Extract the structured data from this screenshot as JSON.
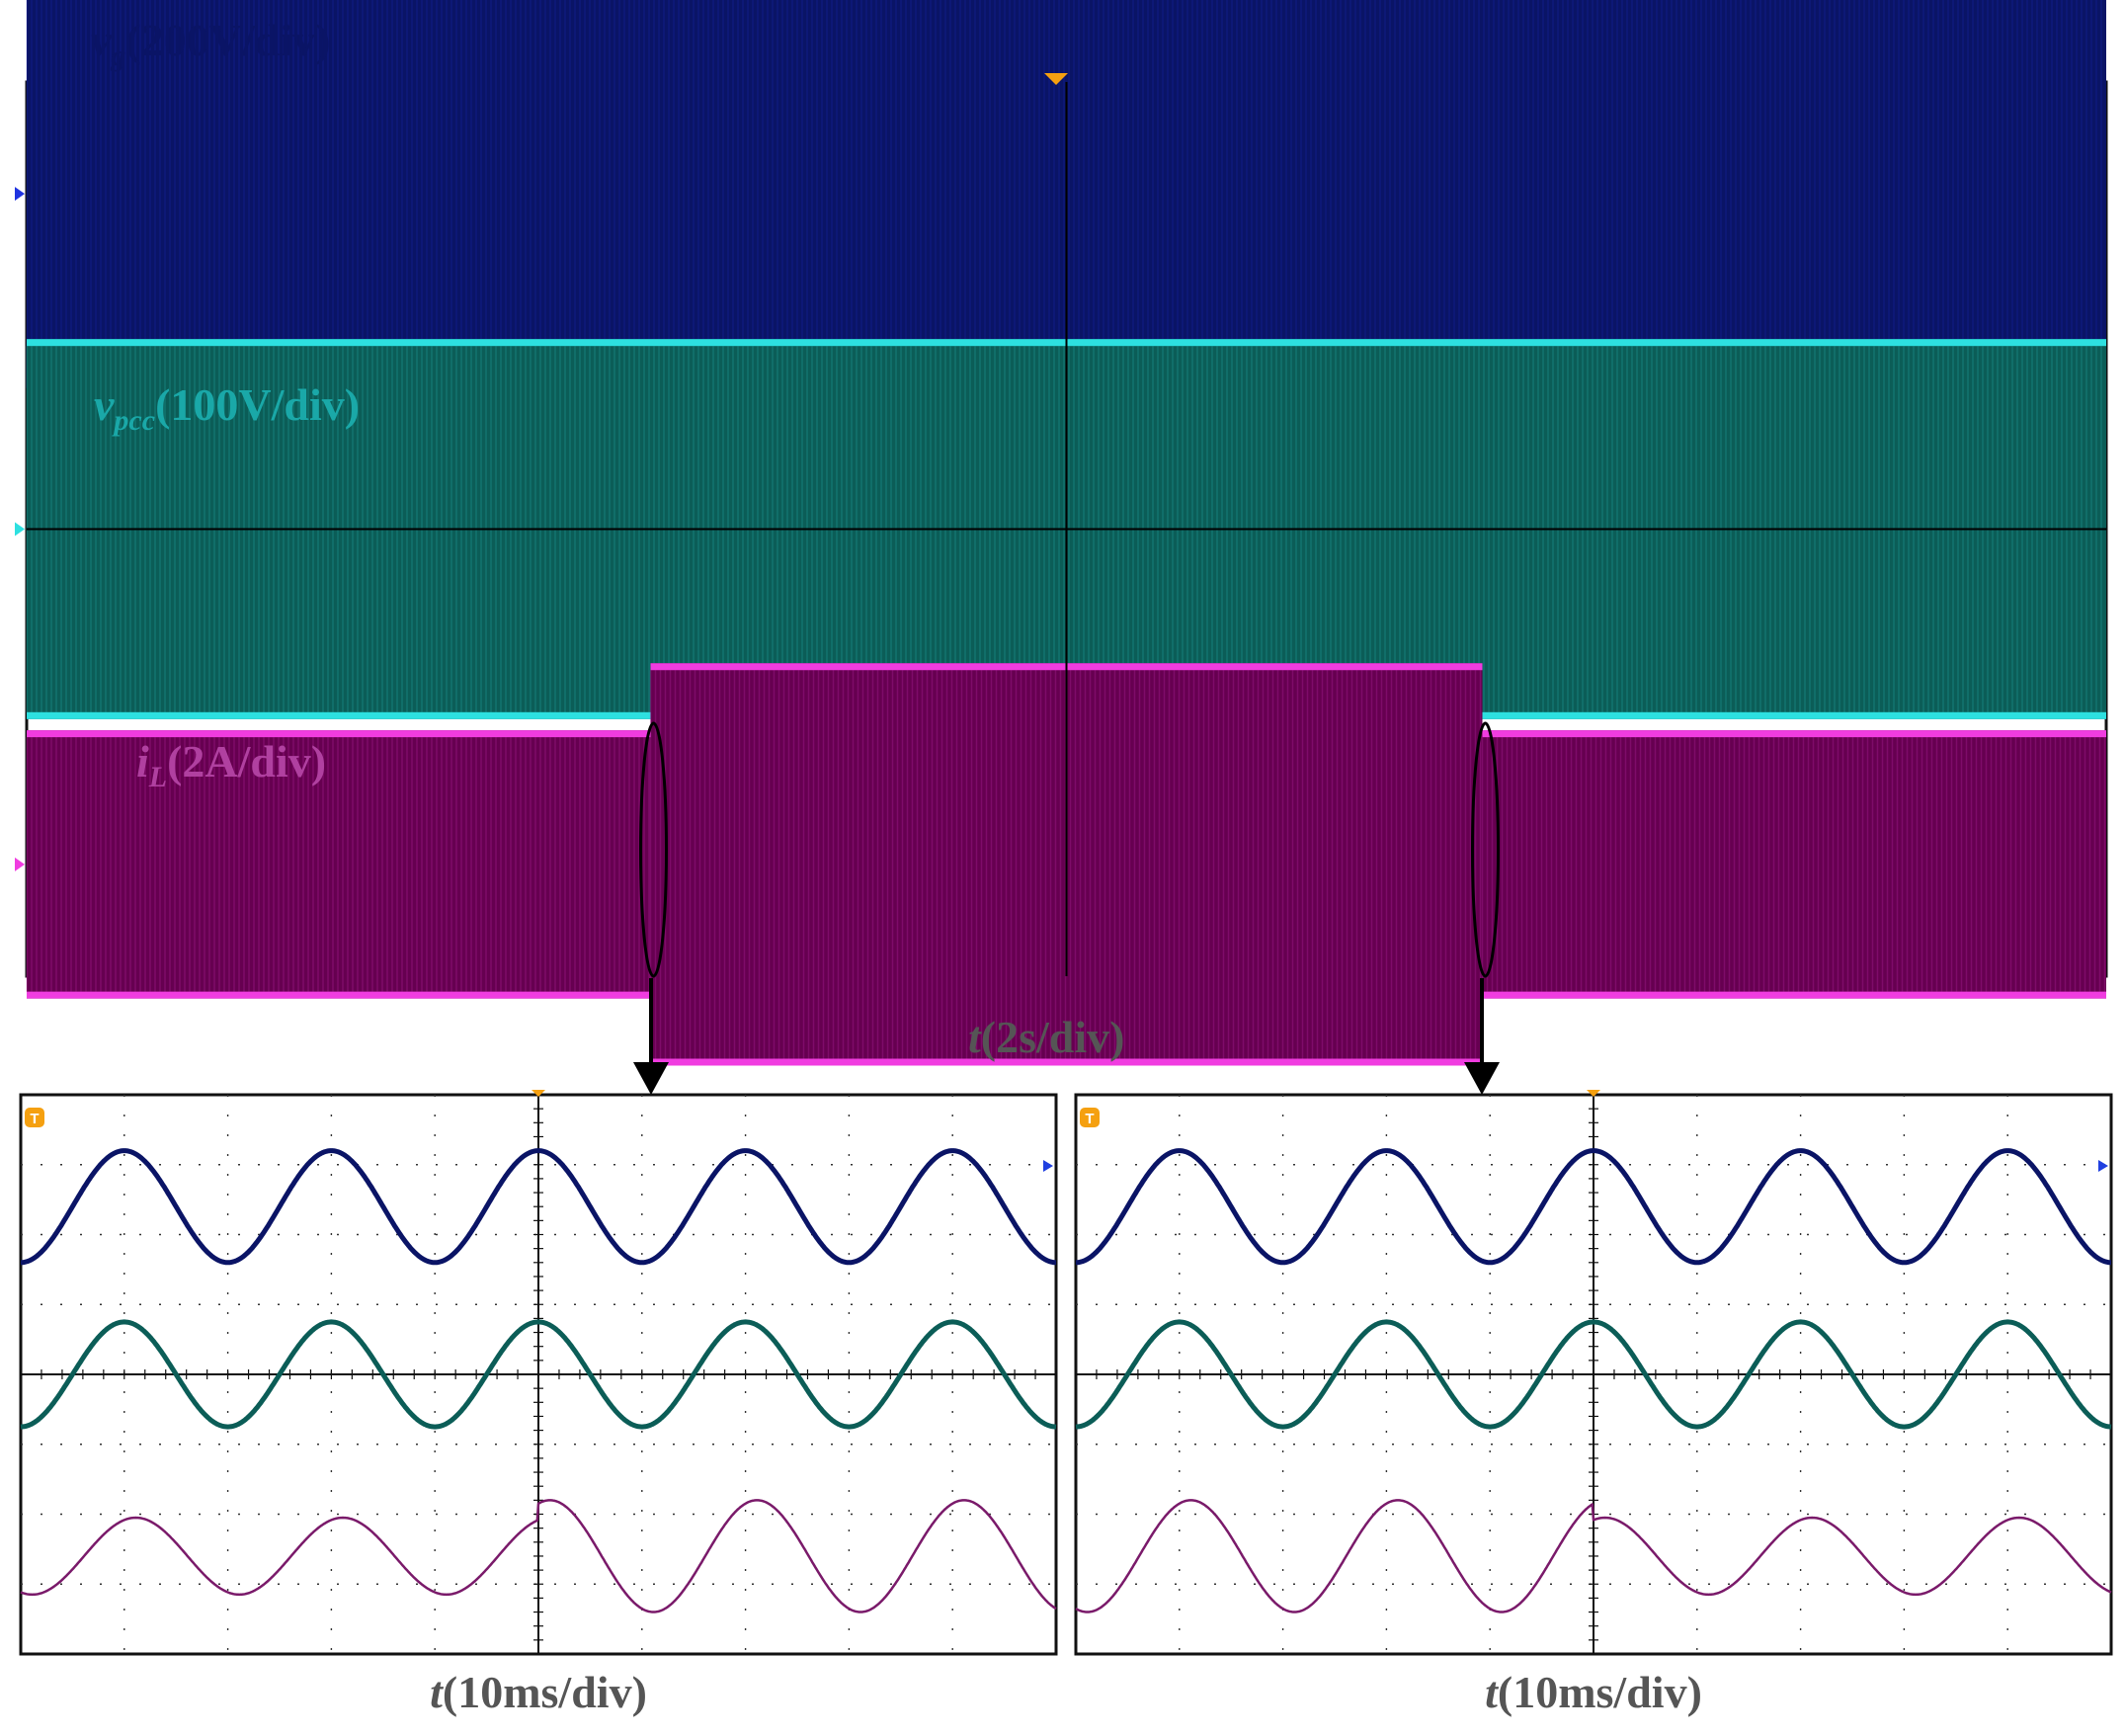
{
  "figure": {
    "main_time_label": {
      "var": "t",
      "unit": "(2s/div)"
    },
    "zoom_time_label": {
      "var": "t",
      "unit": "(10ms/div)"
    },
    "trigger_marker": "T"
  },
  "chart_data": [
    {
      "type": "line",
      "panel": "overview",
      "xlabel": "t(2s/div)",
      "x_divisions": 10,
      "y_divisions": 8,
      "grid": true,
      "series": [
        {
          "name": "vg(200V/div)",
          "label_parts": {
            "var": "v",
            "sub": "g",
            "unit": "(200V/div)"
          },
          "color": "#0a1466",
          "edge_color": "#1f33e0",
          "envelope_divs": [
            {
              "t_div": [
                0,
                10
              ],
              "min": -1.8,
              "max": 1.8
            }
          ]
        },
        {
          "name": "vpcc(100V/div)",
          "label_parts": {
            "var": "v",
            "sub": "pcc",
            "unit": "(100V/div)"
          },
          "color": "#0b5d57",
          "edge_color": "#2de0e0",
          "envelope_divs": [
            {
              "t_div": [
                0,
                10
              ],
              "min": -1.7,
              "max": 1.7
            }
          ]
        },
        {
          "name": "iL(2A/div)",
          "label_parts": {
            "var": "i",
            "sub": "L",
            "unit": "(2A/div)"
          },
          "color": "#660050",
          "edge_color": "#f03ce0",
          "envelope_divs": [
            {
              "t_div": [
                0,
                3.0
              ],
              "min": -1.2,
              "max": 1.2
            },
            {
              "t_div": [
                3.0,
                7.0
              ],
              "min": -1.8,
              "max": 1.8
            },
            {
              "t_div": [
                7.0,
                10
              ],
              "min": -1.2,
              "max": 1.2
            }
          ]
        }
      ],
      "events_div": [
        3.0,
        7.0
      ]
    },
    {
      "type": "line",
      "panel": "zoom-load-increase",
      "xlabel": "t(10ms/div)",
      "x_divisions": 10,
      "y_divisions": 8,
      "grid": true,
      "step_at_div": 5.0,
      "series": [
        {
          "name": "vg",
          "color": "#0a1466",
          "amplitude_divs": [
            0.8,
            0.8
          ],
          "period_div": 2.0,
          "phase_deg": 0
        },
        {
          "name": "vpcc",
          "color": "#0b5d57",
          "amplitude_divs": [
            0.75,
            0.75
          ],
          "period_div": 2.0,
          "phase_deg": 0
        },
        {
          "name": "iL",
          "color": "#7a1a6a",
          "amplitude_divs": [
            0.55,
            0.8
          ],
          "period_div": 2.0,
          "phase_deg": -20
        }
      ]
    },
    {
      "type": "line",
      "panel": "zoom-load-decrease",
      "xlabel": "t(10ms/div)",
      "x_divisions": 10,
      "y_divisions": 8,
      "grid": true,
      "step_at_div": 5.0,
      "series": [
        {
          "name": "vg",
          "color": "#0a1466",
          "amplitude_divs": [
            0.8,
            0.8
          ],
          "period_div": 2.0,
          "phase_deg": 0
        },
        {
          "name": "vpcc",
          "color": "#0b5d57",
          "amplitude_divs": [
            0.75,
            0.75
          ],
          "period_div": 2.0,
          "phase_deg": 0
        },
        {
          "name": "iL",
          "color": "#7a1a6a",
          "amplitude_divs": [
            0.8,
            0.55
          ],
          "period_div": 2.0,
          "phase_deg": -20
        }
      ]
    }
  ]
}
